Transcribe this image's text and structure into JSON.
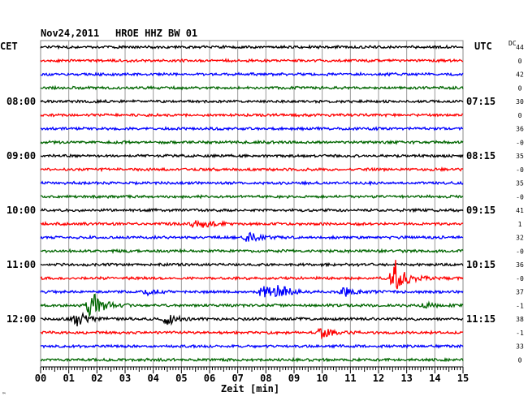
{
  "header": {
    "date": "Nov24,2011",
    "station": "HROE HHZ BW 01",
    "left_zone": "CET",
    "right_zone": "UTC",
    "dc_label": "DC"
  },
  "chart_data": {
    "type": "line",
    "xlabel": "Zeit [min]",
    "xlim": [
      0,
      15
    ],
    "x_ticks": [
      "00",
      "01",
      "02",
      "03",
      "04",
      "05",
      "06",
      "07",
      "08",
      "09",
      "10",
      "11",
      "12",
      "13",
      "14",
      "15"
    ],
    "trace_count": 24,
    "trace_colors": [
      "#000000",
      "#ff0000",
      "#0000ff",
      "#006600"
    ],
    "left_time_labels": [
      {
        "trace": 4,
        "label": "08:00"
      },
      {
        "trace": 8,
        "label": "09:00"
      },
      {
        "trace": 12,
        "label": "10:00"
      },
      {
        "trace": 16,
        "label": "11:00"
      },
      {
        "trace": 20,
        "label": "12:00"
      }
    ],
    "right_time_labels": [
      {
        "trace": 4,
        "label": "07:15"
      },
      {
        "trace": 8,
        "label": "08:15"
      },
      {
        "trace": 12,
        "label": "09:15"
      },
      {
        "trace": 16,
        "label": "10:15"
      },
      {
        "trace": 20,
        "label": "11:15"
      }
    ],
    "dc_values": [
      "44",
      "0",
      "42",
      "0",
      "30",
      "0",
      "36",
      "-0",
      "35",
      "-0",
      "35",
      "-0",
      "41",
      "1",
      "32",
      "-0",
      "36",
      "-0",
      "37",
      "-1",
      "38",
      "-1",
      "33",
      "0"
    ],
    "events": [
      {
        "trace": 13,
        "minute": 5.5,
        "amplitude": 10
      },
      {
        "trace": 14,
        "minute": 7.4,
        "amplitude": 6
      },
      {
        "trace": 17,
        "minute": 12.6,
        "amplitude": 22
      },
      {
        "trace": 18,
        "minute": 7.9,
        "amplitude": 9
      },
      {
        "trace": 18,
        "minute": 8.5,
        "amplitude": 7
      },
      {
        "trace": 18,
        "minute": 10.8,
        "amplitude": 5
      },
      {
        "trace": 18,
        "minute": 3.8,
        "amplitude": 3
      },
      {
        "trace": 19,
        "minute": 1.8,
        "amplitude": 18
      },
      {
        "trace": 20,
        "minute": 1.3,
        "amplitude": 9
      },
      {
        "trace": 20,
        "minute": 4.5,
        "amplitude": 7
      },
      {
        "trace": 21,
        "minute": 10.0,
        "amplitude": 6
      },
      {
        "trace": 19,
        "minute": 13.7,
        "amplitude": 3
      }
    ],
    "footer_mark": "™"
  }
}
